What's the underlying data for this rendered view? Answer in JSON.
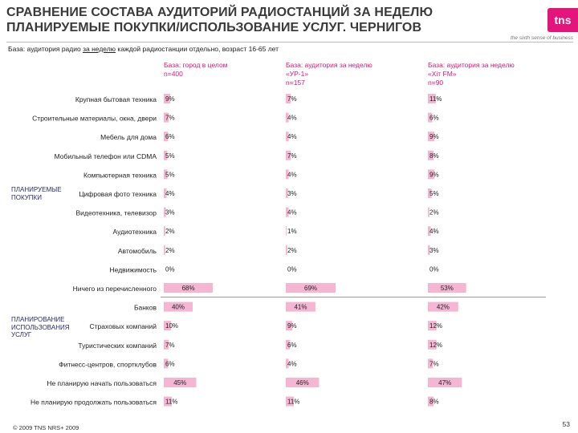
{
  "title": "СРАВНЕНИЕ СОСТАВА АУДИТОРИЙ РАДИОСТАНЦИЙ ЗА НЕДЕЛЮ ПЛАНИРУЕМЫЕ ПОКУПКИ/ИСПОЛЬЗОВАНИЕ УСЛУГ. ЧЕРНИГОВ",
  "brand": {
    "logo_text": "tns",
    "tagline": "the sixth sense of business",
    "color": "#e3147b"
  },
  "subtitle": {
    "before": "База: аудитория радио ",
    "underlined": "за неделю",
    "after": " каждой радиостанции отдельно, возраст 16-65 лет"
  },
  "groups": {
    "purchases": "ПЛАНИРУЕМЫЕ ПОКУПКИ",
    "services": "ПЛАНИРОВАНИЕ ИСПОЛЬЗОВАНИЯ УСЛУГ"
  },
  "footer": "© 2009 TNS   NRS+ 2009",
  "page_number": "53",
  "colors": {
    "bar": "#f4b6d2",
    "accent": "#e3147b"
  },
  "chart_data": {
    "type": "bar",
    "title": "СРАВНЕНИЕ СОСТАВА АУДИТОРИЙ РАДИОСТАНЦИЙ ЗА НЕДЕЛЮ",
    "series": [
      {
        "name": "База: город в целом",
        "line2": "n=400",
        "values": [
          9,
          7,
          6,
          5,
          5,
          4,
          3,
          2,
          2,
          0,
          68,
          40,
          10,
          7,
          6,
          45,
          11
        ]
      },
      {
        "name": "База: аудитория за неделю",
        "line2": "«УР-1»",
        "line3": "n=157",
        "values": [
          7,
          4,
          4,
          7,
          4,
          3,
          4,
          1,
          2,
          0,
          69,
          41,
          9,
          6,
          4,
          46,
          11
        ]
      },
      {
        "name": "База: аудитория за неделю",
        "line2": "«Хіт FM»",
        "line3": "n=90",
        "values": [
          11,
          6,
          9,
          8,
          9,
          5,
          2,
          4,
          3,
          0,
          53,
          42,
          12,
          12,
          7,
          47,
          8
        ]
      }
    ],
    "categories": [
      "Крупная бытовая техника",
      "Строительные материалы, окна, двери",
      "Мебель для дома",
      "Мобильный телефон или CDMA",
      "Компьютерная техника",
      "Цифровая фото техника",
      "Видеотехника, телевизор",
      "Аудиотехника",
      "Автомобиль",
      "Недвижимость",
      "Ничего из перечисленного",
      "Банков",
      "Страховых компаний",
      "Туристических компаний",
      "Фитнесс-центров, спортклубов",
      "Не планирую начать пользоваться",
      "Не планирую продолжать пользоваться"
    ],
    "value_suffix": "%",
    "xlim": [
      0,
      100
    ]
  }
}
